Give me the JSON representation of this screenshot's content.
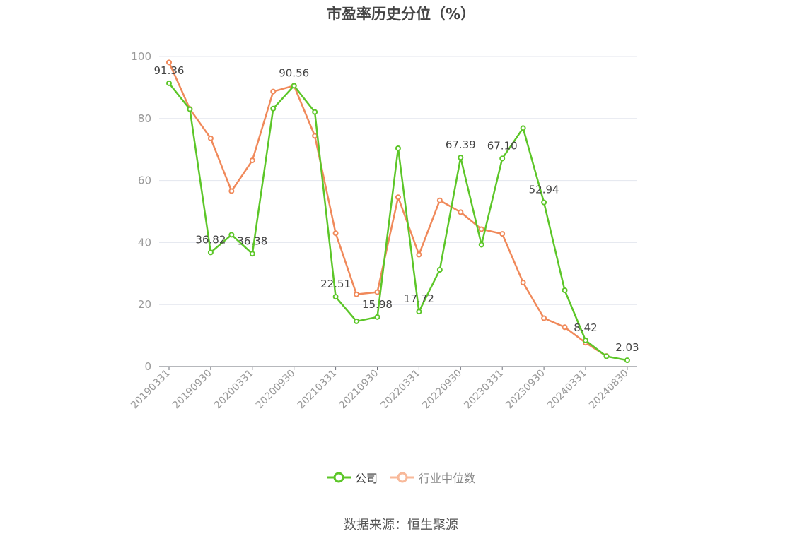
{
  "chart_data": {
    "type": "line",
    "title": "市盈率历史分位（%）",
    "xlabel": "",
    "ylabel": "",
    "ylim": [
      0,
      100
    ],
    "yticks": [
      0,
      20,
      40,
      60,
      80,
      100
    ],
    "x": [
      "20190331",
      "20190630",
      "20190930",
      "20191231",
      "20200331",
      "20200630",
      "20200930",
      "20201231",
      "20210331",
      "20210630",
      "20210930",
      "20211231",
      "20220331",
      "20220630",
      "20220930",
      "20221231",
      "20230331",
      "20230630",
      "20230930",
      "20231231",
      "20240331",
      "20240630",
      "20240830"
    ],
    "x_tick_labels": [
      "20190331",
      "20190930",
      "20200331",
      "20200930",
      "20210331",
      "20210930",
      "20220331",
      "20220930",
      "20230331",
      "20230930",
      "20240331",
      "20240830"
    ],
    "series": [
      {
        "name": "公司",
        "color": "#5cc628",
        "values": [
          91.36,
          83.0,
          36.82,
          42.5,
          36.38,
          83.2,
          90.56,
          82.1,
          22.51,
          14.6,
          15.98,
          70.4,
          17.72,
          31.2,
          67.39,
          39.3,
          67.1,
          76.9,
          52.94,
          24.6,
          8.42,
          3.3,
          2.03
        ],
        "data_labels": {
          "0": "91.36",
          "2": "36.82",
          "4": "36.38",
          "6": "90.56",
          "8": "22.51",
          "10": "15.98",
          "12": "17.72",
          "14": "67.39",
          "16": "67.10",
          "18": "52.94",
          "20": "8.42",
          "22": "2.03"
        }
      },
      {
        "name": "行业中位数",
        "color": "#f0895a",
        "values": [
          98.1,
          83.1,
          73.6,
          56.6,
          66.5,
          88.7,
          90.6,
          74.4,
          43.0,
          23.3,
          24.0,
          54.6,
          36.1,
          53.6,
          49.8,
          44.3,
          42.8,
          27.1,
          15.6,
          12.7,
          7.7,
          3.4,
          null
        ]
      }
    ],
    "legend_position": "bottom-center",
    "grid": true
  },
  "legend": {
    "items": [
      {
        "label": "公司",
        "color": "#5cc628"
      },
      {
        "label": "行业中位数",
        "color": "#f8b99a"
      }
    ]
  },
  "footer": {
    "source_note": "数据来源：恒生聚源"
  }
}
